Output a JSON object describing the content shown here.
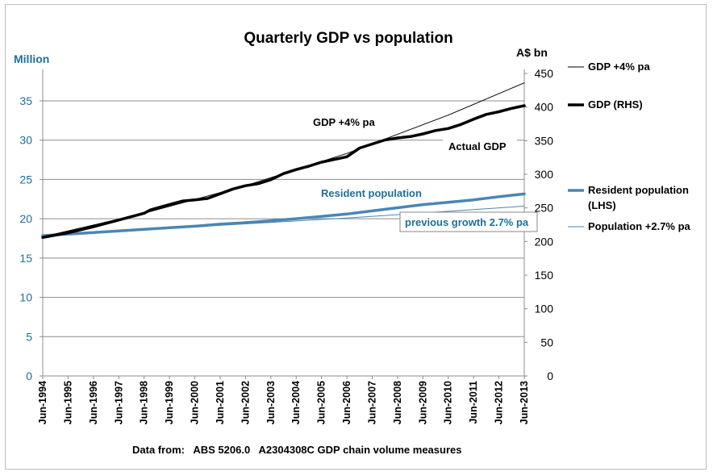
{
  "chart_data": {
    "type": "line",
    "title": "Quarterly GDP vs population",
    "y_left_label": "Million",
    "y_right_label": "A$ bn",
    "source": "Data from:   ABS 5206.0   A2304308C GDP chain volume measures",
    "y_left_ticks": [
      "0",
      "5",
      "10",
      "15",
      "20",
      "25",
      "30",
      "35"
    ],
    "y_right_ticks": [
      "0",
      "50",
      "100",
      "150",
      "200",
      "250",
      "300",
      "350",
      "400",
      "450"
    ],
    "ylim_left": [
      0,
      39
    ],
    "ylim_right": [
      0,
      456
    ],
    "x_ticks": [
      "Jun-1994",
      "Jun-1995",
      "Jun-1996",
      "Jun-1997",
      "Jun-1998",
      "Jun-1999",
      "Jun-2000",
      "Jun-2001",
      "Jun-2002",
      "Jun-2003",
      "Jun-2004",
      "Jun-2005",
      "Jun-2006",
      "Jun-2007",
      "Jun-2008",
      "Jun-2009",
      "Jun-2010",
      "Jun-2011",
      "Jun-2012",
      "Jun-2013"
    ],
    "grid": true,
    "legend_position": "right",
    "colors": {
      "gdp": "#000000",
      "population": "#4a86b4",
      "left_axis": "#1f6f9a"
    },
    "series": [
      {
        "name": "GDP +4% pa",
        "axis": "right",
        "style": "thin-black",
        "x": [
          1994.5,
          1998.5,
          2002.5,
          2006.5,
          2010.5,
          2013.5
        ],
        "y": [
          207,
          242,
          283,
          331,
          388,
          436
        ]
      },
      {
        "name": "GDP (RHS)",
        "axis": "right",
        "style": "thick-black",
        "x": [
          1994.5,
          1995.5,
          1996.5,
          1997.5,
          1998.5,
          1998.75,
          1999.5,
          2000.0,
          2000.5,
          2001.0,
          2001.5,
          2002.0,
          2002.5,
          2003.0,
          2003.5,
          2004.0,
          2004.5,
          2005.0,
          2005.5,
          2006.0,
          2006.5,
          2007.0,
          2007.5,
          2008.0,
          2008.5,
          2009.0,
          2009.5,
          2010.0,
          2010.5,
          2011.0,
          2011.5,
          2012.0,
          2012.5,
          2013.0,
          2013.5
        ],
        "y": [
          206,
          213,
          222,
          232,
          242,
          247,
          255,
          260,
          262,
          264,
          271,
          278,
          283,
          286,
          292,
          301,
          307,
          312,
          318,
          322,
          326,
          339,
          345,
          351,
          354,
          356,
          360,
          365,
          368,
          374,
          382,
          389,
          393,
          398,
          402
        ]
      },
      {
        "name": "Resident population (LHS)",
        "axis": "left",
        "style": "thick-blue",
        "x": [
          1994.5,
          1995.5,
          1996.5,
          1997.5,
          1998.5,
          1999.5,
          2000.5,
          2001.5,
          2002.5,
          2003.5,
          2004.5,
          2005.5,
          2006.5,
          2007.5,
          2008.5,
          2009.5,
          2010.5,
          2011.5,
          2012.5,
          2013.5
        ],
        "y": [
          17.85,
          18.05,
          18.25,
          18.45,
          18.65,
          18.85,
          19.05,
          19.3,
          19.5,
          19.75,
          20.0,
          20.3,
          20.6,
          21.0,
          21.4,
          21.8,
          22.1,
          22.4,
          22.8,
          23.15
        ]
      },
      {
        "name": "Population +2.7% pa",
        "axis": "left",
        "style": "thin-blue",
        "x": [
          1994.5,
          1998.5,
          2002.5,
          2006.5,
          2010.5,
          2013.5
        ],
        "y": [
          17.85,
          18.6,
          19.35,
          20.1,
          20.95,
          21.6
        ]
      }
    ],
    "annotations": [
      "GDP +4% pa",
      "Actual GDP",
      "Resident population",
      "previous growth 2.7% pa"
    ]
  }
}
